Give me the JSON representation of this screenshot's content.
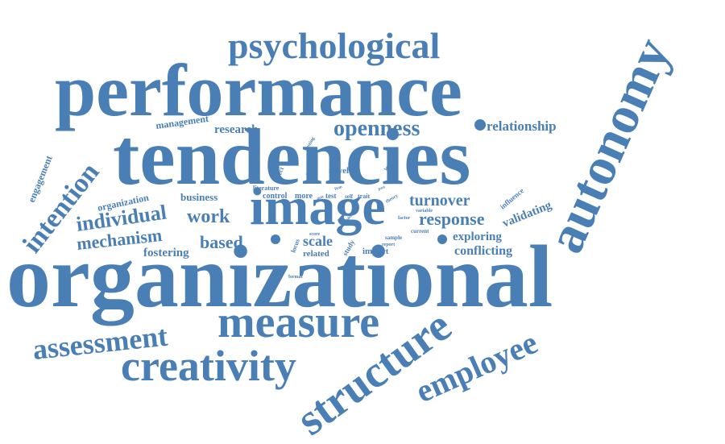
{
  "word_cloud": {
    "color": "#4a7fb5",
    "words": {
      "psychological": "psychological",
      "performance": "performance",
      "tendencies": "tendencies",
      "autonomy": "autonomy",
      "organizational": "organizational",
      "image": "image",
      "measure": "measure",
      "creativity": "creativity",
      "structure": "structure",
      "employee": "employee",
      "assessment": "assessment",
      "intention": "intention",
      "openness": "openness",
      "relationship": "relationship",
      "management": "management",
      "research": "research",
      "individual": "individual",
      "mechanism": "mechanism",
      "work": "work",
      "based": "based",
      "business": "business",
      "organization": "organization",
      "engagement": "engagement",
      "fostering": "fostering",
      "turnover": "turnover",
      "response": "response",
      "exploring": "exploring",
      "conflicting": "conflicting",
      "validating": "validating",
      "influence": "influence",
      "scale": "scale",
      "related": "related",
      "impact": "impact",
      "novel": "novel",
      "control": "control",
      "more": "more",
      "test": "test",
      "self": "self",
      "trait": "trait",
      "literature": "literature",
      "locus": "locus",
      "study": "study",
      "score": "score",
      "sample": "sample",
      "current": "current",
      "report": "report",
      "variable": "variable",
      "factor": "factor",
      "theory": "theory",
      "level": "level",
      "want": "want",
      "effect": "effect",
      "testing": "testing",
      "format": "format",
      "firm": "firm",
      "quit": "quit",
      "past": "past",
      "ideas": "ideas"
    }
  }
}
